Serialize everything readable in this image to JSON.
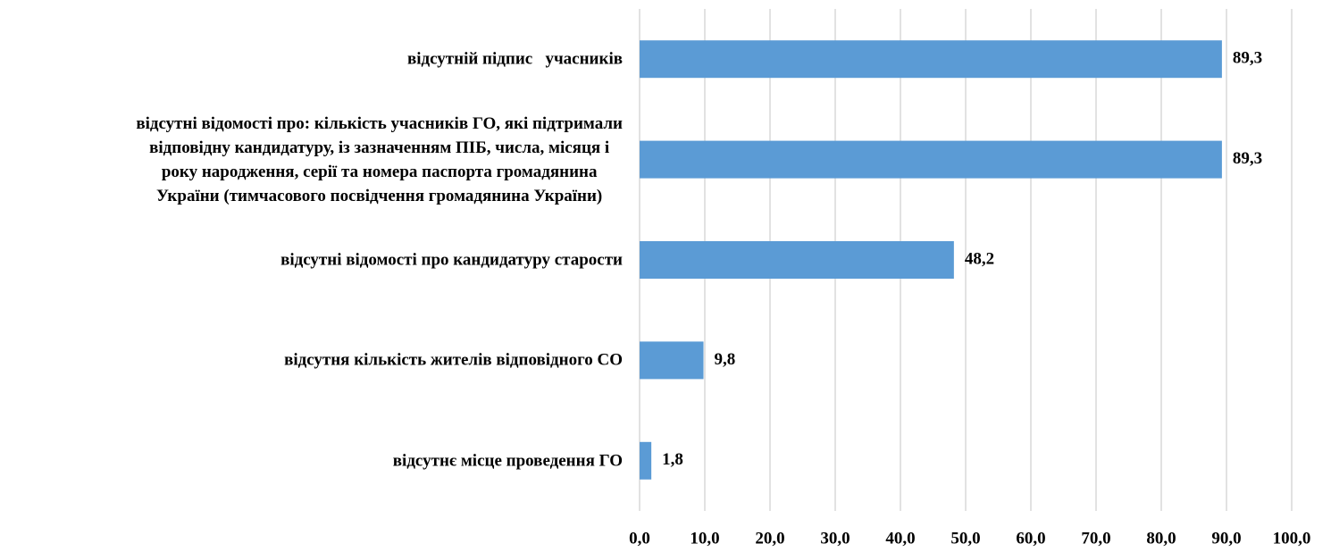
{
  "chart_data": {
    "type": "bar",
    "orientation": "horizontal",
    "categories": [
      "відсутній підпис   учасників",
      "відсутні відомості про: кількість учасників ГО, які підтримали\nвідповідну кандидатуру, із зазначенням ПІБ, числа, місяця і\nроку народження, серії та номера паспорта громадянина\nУкраїни (тимчасового посвідчення громадянина України)",
      "відсутні відомості про кандидатуру старости",
      "відсутня кількість жителів відповідного СО",
      "відсутнє місце проведення ГО"
    ],
    "values": [
      89.3,
      89.3,
      48.2,
      9.8,
      1.8
    ],
    "value_labels": [
      "89,3",
      "89,3",
      "48,2",
      "9,8",
      "1,8"
    ],
    "color": "#5b9bd5",
    "xlim": [
      0,
      100
    ],
    "xticks": [
      {
        "value": 0,
        "label": "0,0"
      },
      {
        "value": 10,
        "label": "10,0"
      },
      {
        "value": 20,
        "label": "20,0"
      },
      {
        "value": 30,
        "label": "30,0"
      },
      {
        "value": 40,
        "label": "40,0"
      },
      {
        "value": 50,
        "label": "50,0"
      },
      {
        "value": 60,
        "label": "60,0"
      },
      {
        "value": 70,
        "label": "70,0"
      },
      {
        "value": 80,
        "label": "80,0"
      },
      {
        "value": 90,
        "label": "90,0"
      },
      {
        "value": 100,
        "label": "100,0"
      }
    ],
    "grid": true
  }
}
